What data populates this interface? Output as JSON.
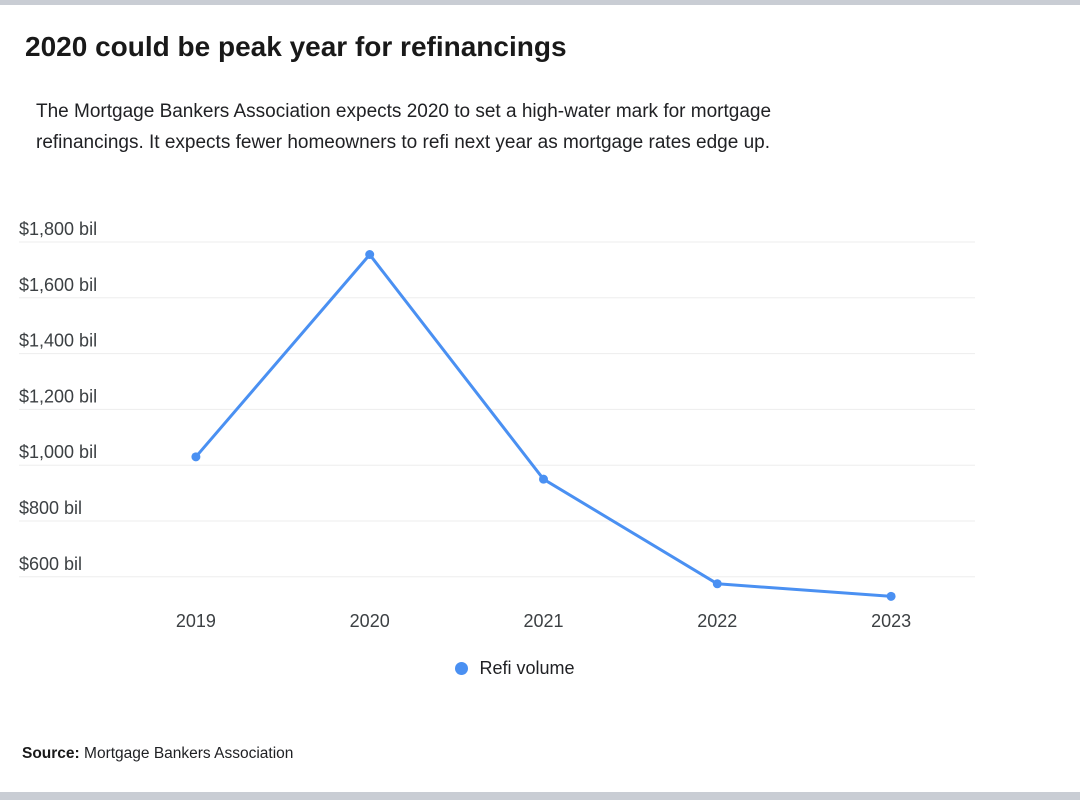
{
  "page": {
    "title": "2020 could be peak year for refinancings",
    "subtitle": "The Mortgage Bankers Association expects 2020 to set a high-water mark for mortgage refinancings. It expects fewer homeowners to refi next year as mortgage rates edge up.",
    "source_label": "Source:",
    "source_value": "Mortgage Bankers Association"
  },
  "legend": {
    "label": "Refi volume"
  },
  "colors": {
    "accent": "#4a90f2",
    "gridline": "#ededed",
    "axis_label": "#3c4043",
    "frame_bar": "#c9cdd4"
  },
  "chart_data": {
    "type": "line",
    "title": "2020 could be peak year for refinancings",
    "categories": [
      "2019",
      "2020",
      "2021",
      "2022",
      "2023"
    ],
    "series": [
      {
        "name": "Refi volume",
        "values": [
          1030,
          1755,
          950,
          575,
          530
        ]
      }
    ],
    "units": "billions of dollars",
    "xlabel": "",
    "ylabel": "",
    "y_ticks": [
      1800,
      1600,
      1400,
      1200,
      1000,
      800,
      600
    ],
    "y_tick_labels": [
      "$1,800 bil",
      "$1,600 bil",
      "$1,400 bil",
      "$1,200 bil",
      "$1,000 bil",
      "$800 bil",
      "$600 bil"
    ],
    "ylim": [
      500,
      1880
    ],
    "grid": true,
    "legend_position": "bottom",
    "marker": "circle"
  }
}
